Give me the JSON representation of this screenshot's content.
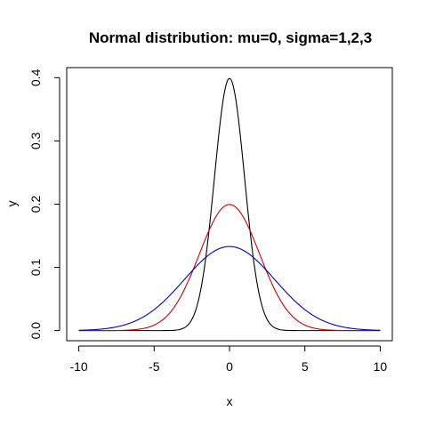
{
  "chart_data": {
    "type": "line",
    "title": "Normal distribution: mu=0, sigma=1,2,3",
    "xlabel": "x",
    "ylabel": "y",
    "xlim": [
      -10.8,
      10.8
    ],
    "ylim": [
      -0.016,
      0.416
    ],
    "x_ticks": [
      -10,
      -5,
      0,
      5,
      10
    ],
    "x_tick_labels": [
      "-10",
      "-5",
      "0",
      "5",
      "10"
    ],
    "y_ticks": [
      0.0,
      0.1,
      0.2,
      0.3,
      0.4
    ],
    "y_tick_labels": [
      "0.0",
      "0.1",
      "0.2",
      "0.3",
      "0.4"
    ],
    "grid": false,
    "legend": "none",
    "x_range": [
      -10,
      10
    ],
    "series": [
      {
        "mu": 0,
        "sigma": 1,
        "color": "#000000",
        "x": [
          -10,
          -3,
          -2,
          -1.5,
          -1,
          -0.5,
          0,
          0.5,
          1,
          1.5,
          2,
          3,
          10
        ],
        "y": [
          0.0,
          0.0044,
          0.054,
          0.1295,
          0.242,
          0.3521,
          0.3989,
          0.3521,
          0.242,
          0.1295,
          0.054,
          0.0044,
          0.0
        ]
      },
      {
        "mu": 0,
        "sigma": 2,
        "color": "#cc0000",
        "x": [
          -10,
          -6,
          -4,
          -3,
          -2,
          -1,
          0,
          1,
          2,
          3,
          4,
          6,
          10
        ],
        "y": [
          0.0,
          0.0022,
          0.027,
          0.0648,
          0.121,
          0.176,
          0.1995,
          0.176,
          0.121,
          0.0648,
          0.027,
          0.0022,
          0.0
        ]
      },
      {
        "mu": 0,
        "sigma": 3,
        "color": "#0000cc",
        "x": [
          -10,
          -8,
          -6,
          -4,
          -3,
          -2,
          -1,
          0,
          1,
          2,
          3,
          4,
          6,
          8,
          10
        ],
        "y": [
          0.0005,
          0.0038,
          0.018,
          0.0546,
          0.0807,
          0.1065,
          0.1258,
          0.133,
          0.1258,
          0.1065,
          0.0807,
          0.0546,
          0.018,
          0.0038,
          0.0005
        ]
      }
    ]
  }
}
